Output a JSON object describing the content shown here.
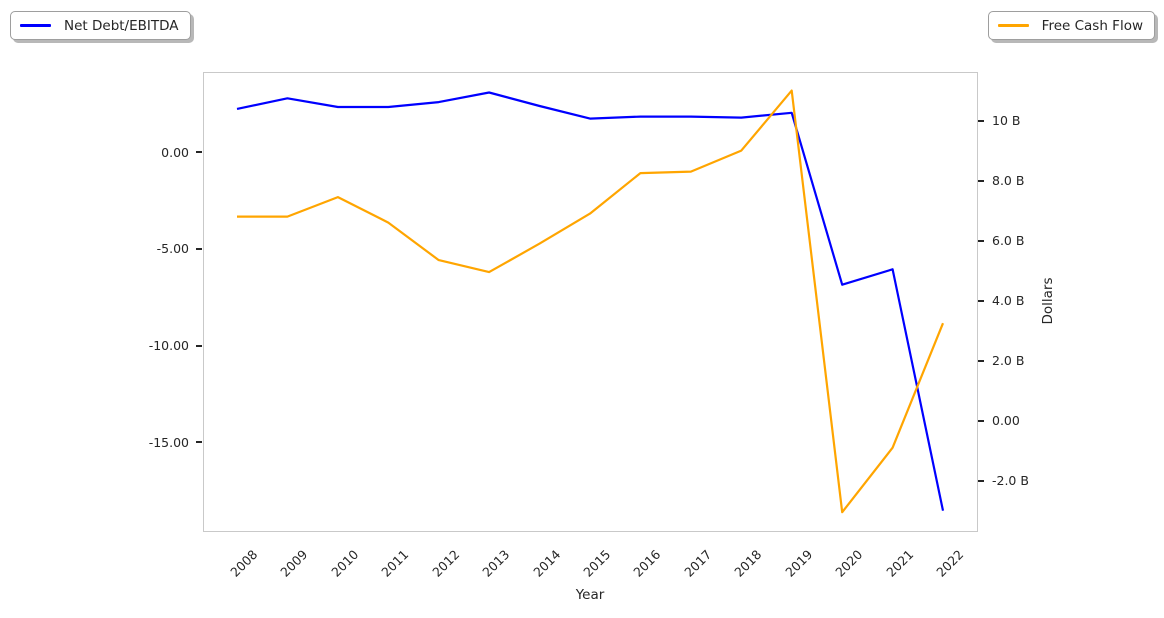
{
  "legend_left": {
    "label": "Net Debt/EBITDA"
  },
  "legend_right": {
    "label": "Free Cash Flow"
  },
  "chart_data": {
    "type": "line",
    "title": "",
    "xlabel": "Year",
    "x_categories": [
      "2008",
      "2009",
      "2010",
      "2011",
      "2012",
      "2013",
      "2014",
      "2015",
      "2016",
      "2017",
      "2018",
      "2019",
      "2020",
      "2021",
      "2022"
    ],
    "series": [
      {
        "name": "Net Debt/EBITDA",
        "axis": "left",
        "color": "#0000ff",
        "values": [
          2.25,
          2.8,
          2.35,
          2.35,
          2.6,
          3.1,
          2.4,
          1.75,
          1.85,
          1.85,
          1.8,
          2.05,
          -6.85,
          -6.05,
          -18.55
        ]
      },
      {
        "name": "Free Cash Flow",
        "axis": "right",
        "color": "#ffa500",
        "values": [
          6.8,
          6.8,
          7.45,
          6.6,
          5.35,
          4.95,
          5.9,
          6.9,
          8.25,
          8.3,
          9.0,
          11.0,
          -3.05,
          -0.9,
          3.25
        ]
      }
    ],
    "left_axis": {
      "label": "",
      "tick_values": [
        0,
        -5,
        -10,
        -15
      ],
      "tick_labels": [
        "0.00",
        "-5.00",
        "-10.00",
        "-15.00"
      ],
      "min": -19.65,
      "max": 4.16
    },
    "right_axis": {
      "label": "Dollars",
      "unit": "B",
      "tick_values": [
        10,
        8,
        6,
        4,
        2,
        0,
        -2
      ],
      "tick_labels": [
        "10 B",
        "8.0 B",
        "6.0 B",
        "4.0 B",
        "2.0 B",
        "0.00",
        "-2.0 B"
      ],
      "min": -3.71,
      "max": 11.62
    },
    "grid": false,
    "legend_position": [
      "outside upper left",
      "outside upper right"
    ]
  }
}
